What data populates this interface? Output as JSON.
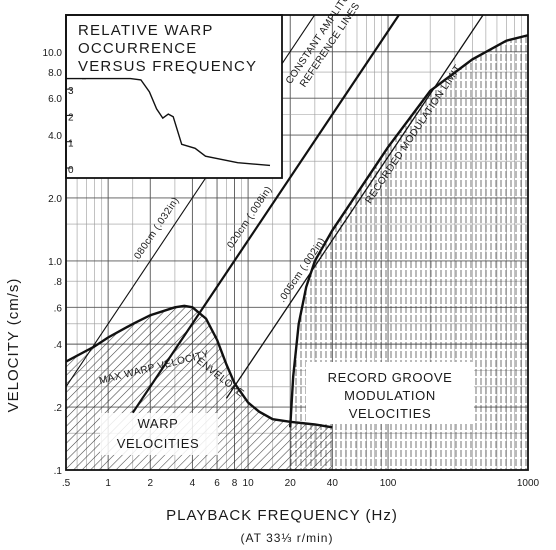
{
  "chart_data": {
    "type": "line",
    "xlabel": "PLAYBACK FREQUENCY (Hz)",
    "xlabel_sub": "(AT 33⅓ r/min)",
    "ylabel": "VELOCITY (cm/s)",
    "x_scale": "log",
    "y_scale": "log",
    "xlim": [
      0.5,
      1000
    ],
    "ylim": [
      0.1,
      15
    ],
    "grid": true,
    "x_ticks": [
      {
        "v": 0.5,
        "label": ".5"
      },
      {
        "v": 1,
        "label": "1"
      },
      {
        "v": 2,
        "label": "2"
      },
      {
        "v": 4,
        "label": "4"
      },
      {
        "v": 6,
        "label": "6"
      },
      {
        "v": 8,
        "label": "8"
      },
      {
        "v": 10,
        "label": "10"
      },
      {
        "v": 20,
        "label": "20"
      },
      {
        "v": 40,
        "label": "40"
      },
      {
        "v": 100,
        "label": "100"
      },
      {
        "v": 1000,
        "label": "1000"
      }
    ],
    "y_ticks": [
      {
        "v": 0.1,
        "label": ".1"
      },
      {
        "v": 0.2,
        "label": ".2"
      },
      {
        "v": 0.4,
        "label": ".4"
      },
      {
        "v": 0.6,
        "label": ".6"
      },
      {
        "v": 0.8,
        "label": ".8"
      },
      {
        "v": 1.0,
        "label": "1.0"
      },
      {
        "v": 2.0,
        "label": "2.0"
      },
      {
        "v": 4.0,
        "label": "4.0"
      },
      {
        "v": 6.0,
        "label": "6.0"
      },
      {
        "v": 8.0,
        "label": "8.0"
      },
      {
        "v": 10.0,
        "label": "10.0"
      }
    ],
    "series": [
      {
        "name": "MAX WARP VELOCITY ENVELOPE",
        "x": [
          0.5,
          0.8,
          1,
          1.5,
          2,
          3,
          3.5,
          4,
          5,
          6,
          7,
          8,
          10,
          12,
          15,
          20,
          30,
          40
        ],
        "y": [
          0.33,
          0.39,
          0.43,
          0.5,
          0.55,
          0.6,
          0.61,
          0.6,
          0.53,
          0.42,
          0.32,
          0.26,
          0.21,
          0.19,
          0.175,
          0.17,
          0.165,
          0.16
        ]
      },
      {
        "name": "RECORDED MODULATION LIMIT",
        "x": [
          20,
          21,
          23,
          26,
          30,
          40,
          60,
          100,
          200,
          400,
          700,
          1000
        ],
        "y": [
          0.16,
          0.28,
          0.5,
          0.75,
          1.0,
          1.4,
          2.1,
          3.5,
          6.5,
          9.2,
          11.3,
          12.0
        ]
      },
      {
        "name": ".080cm (.032in)",
        "x": [
          0.5,
          300
        ],
        "y": [
          0.25,
          150.8
        ]
      },
      {
        "name": ".020cm (.008in)",
        "x": [
          1.5,
          1000
        ],
        "y": [
          0.188,
          125.7
        ]
      },
      {
        "name": ".005cm (.002in)",
        "x": [
          7,
          1000
        ],
        "y": [
          0.22,
          31.4
        ]
      }
    ],
    "annotations": {
      "constant_amplitude": [
        "CONSTANT AMPLITUDE",
        "REFERENCE LINES"
      ],
      "line_080": ".080cm (.032in)",
      "line_020": ".020cm (.008in)",
      "line_005": ".005cm (.002in)",
      "modulation_limit": "RECORDED MODULATION LIMIT",
      "envelope": "MAX WARP VELOCITY ENVELOPE",
      "warp_region": [
        "WARP",
        "VELOCITIES"
      ],
      "groove_region": [
        "RECORD GROOVE",
        "MODULATION",
        "VELOCITIES"
      ]
    },
    "inset": {
      "title": [
        "RELATIVE WARP",
        "OCCURRENCE",
        "VERSUS FREQUENCY"
      ],
      "y_ticks": [
        "3",
        "2",
        "1",
        "0"
      ],
      "ylim": [
        0,
        3.5
      ],
      "curve_x": [
        0.5,
        0.8,
        1,
        1.5,
        2,
        2.5,
        3,
        3.5,
        4,
        4.5,
        5,
        6,
        8,
        10,
        20,
        40
      ],
      "curve_y": [
        3.4,
        3.4,
        3.4,
        3.4,
        3.4,
        3.35,
        2.9,
        2.25,
        1.9,
        2.05,
        1.95,
        0.9,
        0.75,
        0.45,
        0.2,
        0.1
      ]
    }
  }
}
